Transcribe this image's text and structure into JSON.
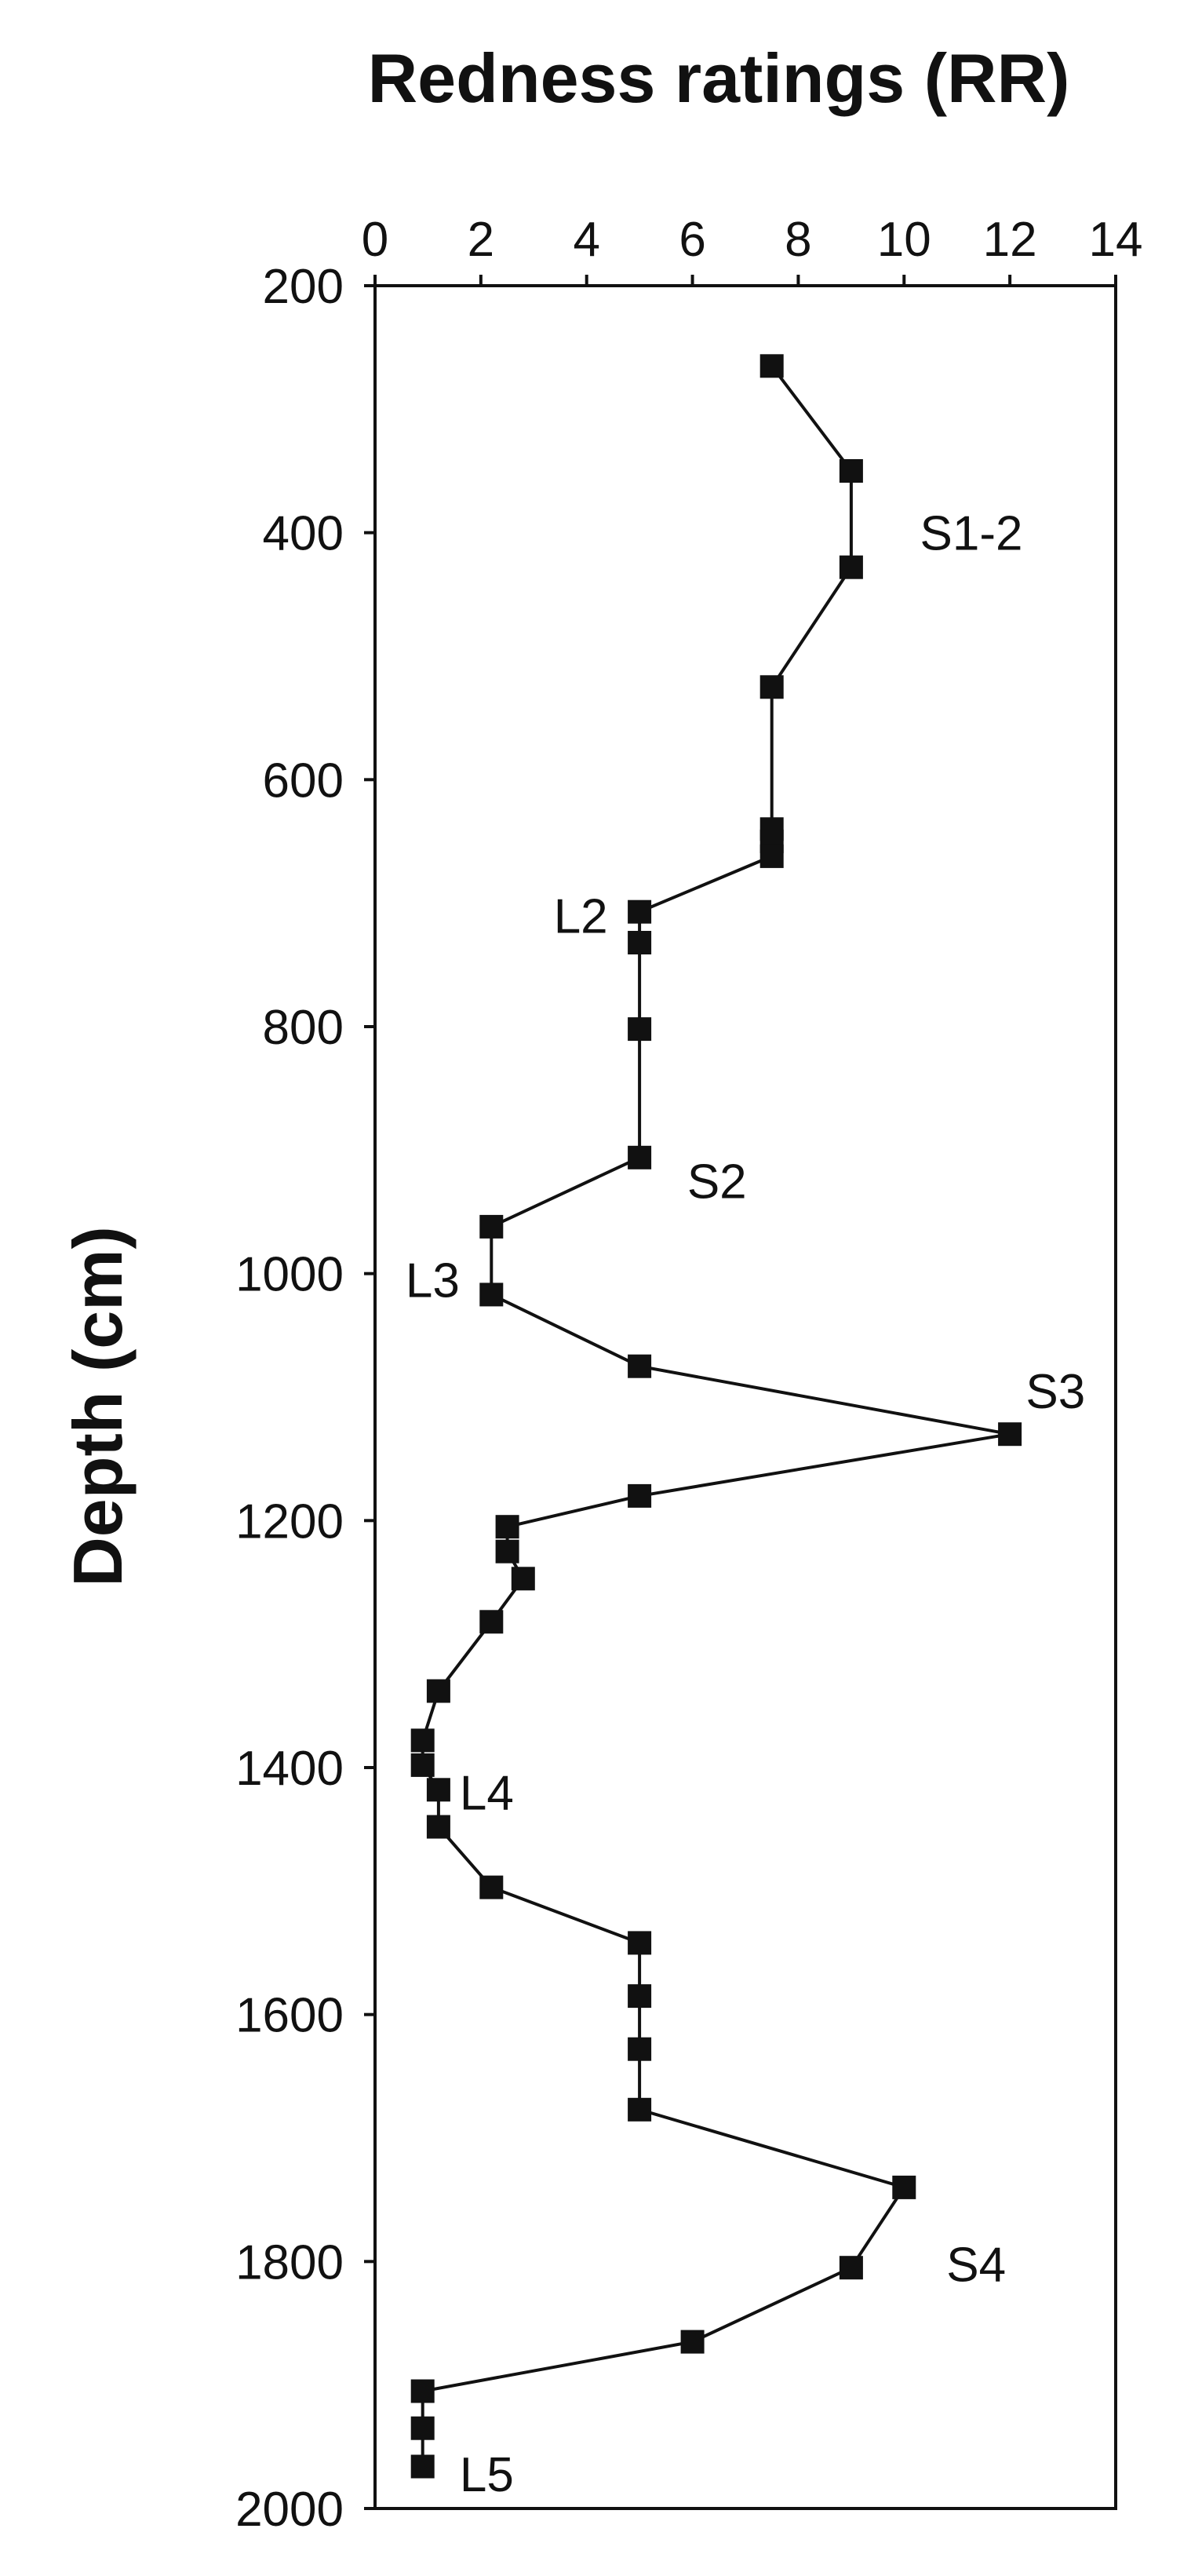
{
  "chart_data": {
    "type": "line",
    "xlabel": "Redness ratings (RR)",
    "ylabel": "Depth (cm)",
    "xlim": [
      0,
      14
    ],
    "ylim": [
      200,
      2000
    ],
    "y_inverted": true,
    "x_axis_position": "top",
    "xticks": [
      0,
      2,
      4,
      6,
      8,
      10,
      12,
      14
    ],
    "yticks": [
      200,
      400,
      600,
      800,
      1000,
      1200,
      1400,
      1600,
      1800,
      2000
    ],
    "grid": false,
    "legend": "none",
    "marker": "square",
    "color": "#111111",
    "series": [
      {
        "points": [
          {
            "x": 7.5,
            "y": 265
          },
          {
            "x": 9.0,
            "y": 350
          },
          {
            "x": 9.0,
            "y": 428
          },
          {
            "x": 7.5,
            "y": 525
          },
          {
            "x": 7.5,
            "y": 640
          },
          {
            "x": 7.5,
            "y": 650
          },
          {
            "x": 7.5,
            "y": 662
          },
          {
            "x": 5.0,
            "y": 707
          },
          {
            "x": 5.0,
            "y": 732
          },
          {
            "x": 5.0,
            "y": 802
          },
          {
            "x": 5.0,
            "y": 906
          },
          {
            "x": 2.2,
            "y": 962
          },
          {
            "x": 2.2,
            "y": 1017
          },
          {
            "x": 5.0,
            "y": 1075
          },
          {
            "x": 12.0,
            "y": 1130
          },
          {
            "x": 5.0,
            "y": 1180
          },
          {
            "x": 2.5,
            "y": 1205
          },
          {
            "x": 2.5,
            "y": 1225
          },
          {
            "x": 2.8,
            "y": 1247
          },
          {
            "x": 2.2,
            "y": 1282
          },
          {
            "x": 1.2,
            "y": 1338
          },
          {
            "x": 0.9,
            "y": 1378
          },
          {
            "x": 0.9,
            "y": 1398
          },
          {
            "x": 1.2,
            "y": 1418
          },
          {
            "x": 1.2,
            "y": 1448
          },
          {
            "x": 2.2,
            "y": 1497
          },
          {
            "x": 5.0,
            "y": 1542
          },
          {
            "x": 5.0,
            "y": 1585
          },
          {
            "x": 5.0,
            "y": 1628
          },
          {
            "x": 5.0,
            "y": 1677
          },
          {
            "x": 10.0,
            "y": 1740
          },
          {
            "x": 9.0,
            "y": 1805
          },
          {
            "x": 6.0,
            "y": 1865
          },
          {
            "x": 0.9,
            "y": 1905
          },
          {
            "x": 0.9,
            "y": 1935
          },
          {
            "x": 0.9,
            "y": 1966
          }
        ]
      }
    ],
    "annotations": [
      {
        "text": "S1-2",
        "x": 10.3,
        "y": 400,
        "anchor": "start"
      },
      {
        "text": "L2",
        "x": 4.4,
        "y": 710,
        "anchor": "end"
      },
      {
        "text": "S2",
        "x": 5.9,
        "y": 925,
        "anchor": "start"
      },
      {
        "text": "L3",
        "x": 1.6,
        "y": 1005,
        "anchor": "end"
      },
      {
        "text": "S3",
        "x": 12.3,
        "y": 1095,
        "anchor": "start"
      },
      {
        "text": "L4",
        "x": 1.6,
        "y": 1420,
        "anchor": "start"
      },
      {
        "text": "S4",
        "x": 10.8,
        "y": 1802,
        "anchor": "start"
      },
      {
        "text": "L5",
        "x": 1.6,
        "y": 1972,
        "anchor": "start"
      }
    ]
  }
}
